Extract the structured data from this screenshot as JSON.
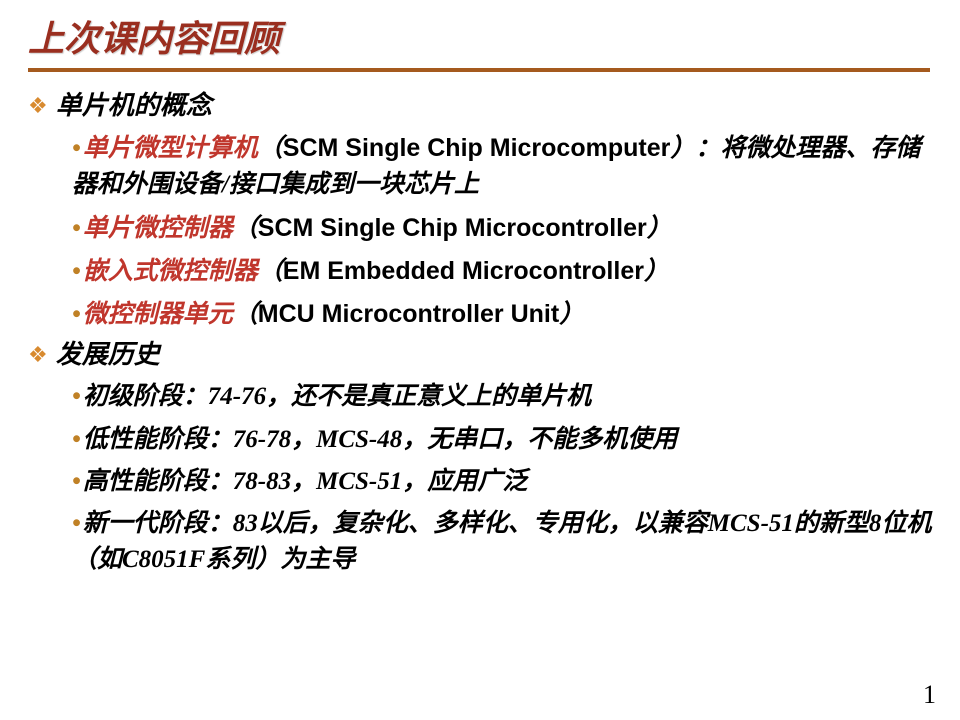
{
  "title": "上次课内容回顾",
  "sections": [
    {
      "heading": "单片机的概念",
      "items": [
        {
          "red": "单片微型计算机",
          "rest_pre": "（",
          "en": "SCM Single Chip Microcomputer",
          "rest_post": "）：将微处理器、存储器和外围设备/接口集成到一块芯片上"
        },
        {
          "red": "单片微控制器",
          "rest_pre": "（",
          "en": "SCM Single Chip Microcontroller",
          "rest_post": "）"
        },
        {
          "red": "嵌入式微控制器",
          "rest_pre": "（",
          "en": "EM Embedded Microcontroller",
          "rest_post": "）"
        },
        {
          "red": "微控制器单元",
          "rest_pre": "（",
          "en": "MCU  Microcontroller Unit",
          "rest_post": "）"
        }
      ]
    },
    {
      "heading": "发展历史",
      "items": [
        {
          "plain": "初级阶段：74-76，还不是真正意义上的单片机"
        },
        {
          "plain": "低性能阶段：76-78，MCS-48，无串口，不能多机使用"
        },
        {
          "plain": "高性能阶段：78-83，MCS-51，应用广泛"
        },
        {
          "plain": "新一代阶段：83以后，复杂化、多样化、专用化，以兼容MCS-51的新型8位机（如C8051F系列）为主导"
        }
      ]
    }
  ],
  "page_number": "1",
  "colors": {
    "title": "#9a2e1f",
    "rule": "#a55a1e",
    "diamond": "#d88a2f",
    "bullet": "#c08126",
    "red_text": "#c0362c",
    "background": "#ffffff"
  }
}
